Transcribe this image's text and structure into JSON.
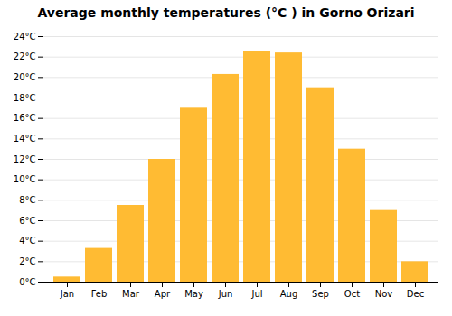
{
  "chart_data": {
    "type": "bar",
    "title": "Average monthly temperatures (°C ) in Gorno Orizari",
    "categories": [
      "Jan",
      "Feb",
      "Mar",
      "Apr",
      "May",
      "Jun",
      "Jul",
      "Aug",
      "Sep",
      "Oct",
      "Nov",
      "Dec"
    ],
    "values": [
      0.5,
      3.3,
      7.5,
      12.0,
      17.0,
      20.3,
      22.5,
      22.4,
      19.0,
      13.0,
      7.0,
      2.0
    ],
    "color": "#FFBB33",
    "ylim": [
      0,
      24
    ],
    "yticks": [
      {
        "value": 0,
        "label": "0°C"
      },
      {
        "value": 2,
        "label": "2°C"
      },
      {
        "value": 4,
        "label": "4°C"
      },
      {
        "value": 6,
        "label": "6°C"
      },
      {
        "value": 8,
        "label": "8°C"
      },
      {
        "value": 10,
        "label": "10°C"
      },
      {
        "value": 12,
        "label": "12°C"
      },
      {
        "value": 14,
        "label": "14°C"
      },
      {
        "value": 16,
        "label": "16°C"
      },
      {
        "value": 18,
        "label": "18°C"
      },
      {
        "value": 20,
        "label": "20°C"
      },
      {
        "value": 22,
        "label": "22°C"
      },
      {
        "value": 24,
        "label": "24°C"
      }
    ],
    "grid": true
  }
}
